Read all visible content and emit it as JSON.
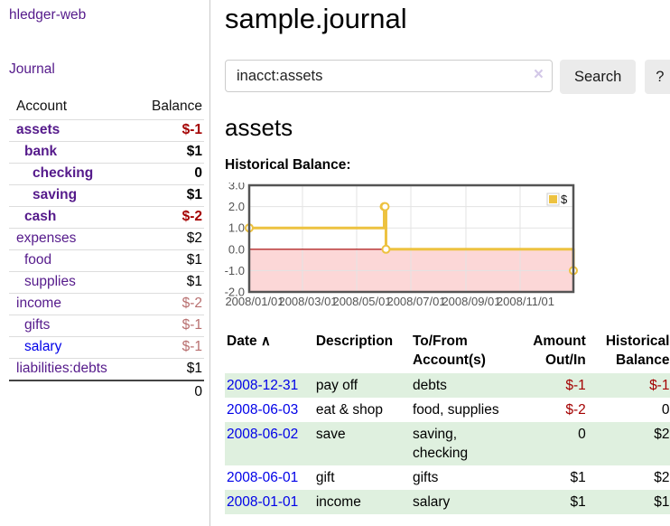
{
  "app": {
    "title": "hledger-web"
  },
  "sidebar": {
    "journal_link": "Journal",
    "accounts_header": {
      "account": "Account",
      "balance": "Balance"
    },
    "accounts": [
      {
        "name": "assets",
        "level": 1,
        "bold": true,
        "link_color": "purple",
        "balance": "$-1",
        "balance_style": "neg-strong"
      },
      {
        "name": "bank",
        "level": 2,
        "bold": true,
        "link_color": "purple",
        "balance": "$1",
        "balance_style": "pos-strong"
      },
      {
        "name": "checking",
        "level": 3,
        "bold": true,
        "link_color": "purple",
        "balance": "0",
        "balance_style": "pos-strong"
      },
      {
        "name": "saving",
        "level": 3,
        "bold": true,
        "link_color": "purple",
        "balance": "$1",
        "balance_style": "pos-strong"
      },
      {
        "name": "cash",
        "level": 2,
        "bold": true,
        "link_color": "purple",
        "balance": "$-2",
        "balance_style": "neg-strong"
      },
      {
        "name": "expenses",
        "level": 1,
        "bold": false,
        "link_color": "purple",
        "balance": "$2",
        "balance_style": "normal"
      },
      {
        "name": "food",
        "level": 2,
        "bold": false,
        "link_color": "purple",
        "balance": "$1",
        "balance_style": "normal"
      },
      {
        "name": "supplies",
        "level": 2,
        "bold": false,
        "link_color": "purple",
        "balance": "$1",
        "balance_style": "normal"
      },
      {
        "name": "income",
        "level": 1,
        "bold": false,
        "link_color": "purple",
        "balance": "$-2",
        "balance_style": "neg-muted"
      },
      {
        "name": "gifts",
        "level": 2,
        "bold": false,
        "link_color": "purple",
        "balance": "$-1",
        "balance_style": "neg-muted"
      },
      {
        "name": "salary",
        "level": 2,
        "bold": false,
        "link_color": "blue",
        "balance": "$-1",
        "balance_style": "neg-muted"
      },
      {
        "name": "liabilities:debts",
        "level": 1,
        "bold": false,
        "link_color": "purple",
        "balance": "$1",
        "balance_style": "normal"
      }
    ],
    "total": "0"
  },
  "header": {
    "title": "sample.journal"
  },
  "search": {
    "value": "inacct:assets",
    "clear_icon": "×",
    "button_label": "Search",
    "help_label": "?"
  },
  "account_page": {
    "title": "assets",
    "chart_label": "Historical Balance:"
  },
  "chart_data": {
    "type": "line",
    "style": "step",
    "title": "Historical Balance",
    "series": [
      {
        "name": "$",
        "color": "#edc240",
        "points": [
          {
            "date": "2008-01-01",
            "value": 1
          },
          {
            "date": "2008-06-01",
            "value": 2
          },
          {
            "date": "2008-06-02",
            "value": 2
          },
          {
            "date": "2008-06-03",
            "value": 0
          },
          {
            "date": "2008-12-31",
            "value": -1
          }
        ]
      }
    ],
    "x_range": [
      "2008-01-01",
      "2008-12-31"
    ],
    "x_tick_dates": [
      "2008-01-01",
      "2008-03-01",
      "2008-05-01",
      "2008-07-01",
      "2008-09-01",
      "2008-11-01"
    ],
    "x_tick_labels": [
      "2008/01/01",
      "2008/03/01",
      "2008/05/01",
      "2008/07/01",
      "2008/09/01",
      "2008/11/01"
    ],
    "ylim": [
      -2,
      3
    ],
    "y_tick_values": [
      3,
      2,
      1,
      0,
      -1,
      -2
    ],
    "y_tick_labels": [
      "3.0",
      "2.0",
      "1.0",
      "0.0",
      "-1.0",
      "-2.0"
    ],
    "grid": true,
    "legend_position": "top-right",
    "legend_label": "$",
    "colors": {
      "line": "#edc240",
      "marker_fill": "#ffffff",
      "negative_region": "#fcd7d7",
      "zero_line": "#a40000",
      "gridline": "#e3e3e3",
      "border": "#545454",
      "tick_text": "#545454"
    }
  },
  "register": {
    "columns": {
      "date": "Date",
      "sort_icon": "∧",
      "description": "Description",
      "tofrom_line1": "To/From",
      "tofrom_line2": "Account(s)",
      "amount_line1": "Amount",
      "amount_line2": "Out/In",
      "balance_line1": "Historical",
      "balance_line2": "Balance"
    },
    "rows": [
      {
        "date": "2008-12-31",
        "description": "pay off",
        "accounts_lines": [
          "debts"
        ],
        "amount": "$-1",
        "amount_neg": true,
        "balance": "$-1",
        "balance_neg": true
      },
      {
        "date": "2008-06-03",
        "description": "eat & shop",
        "accounts_lines": [
          "food, supplies"
        ],
        "amount": "$-2",
        "amount_neg": true,
        "balance": "0",
        "balance_neg": false
      },
      {
        "date": "2008-06-02",
        "description": "save",
        "accounts_lines": [
          "saving,",
          "checking"
        ],
        "amount": "0",
        "amount_neg": false,
        "balance": "$2",
        "balance_neg": false
      },
      {
        "date": "2008-06-01",
        "description": "gift",
        "accounts_lines": [
          "gifts"
        ],
        "amount": "$1",
        "amount_neg": false,
        "balance": "$2",
        "balance_neg": false
      },
      {
        "date": "2008-01-01",
        "description": "income",
        "accounts_lines": [
          "salary"
        ],
        "amount": "$1",
        "amount_neg": false,
        "balance": "$1",
        "balance_neg": false
      }
    ]
  }
}
